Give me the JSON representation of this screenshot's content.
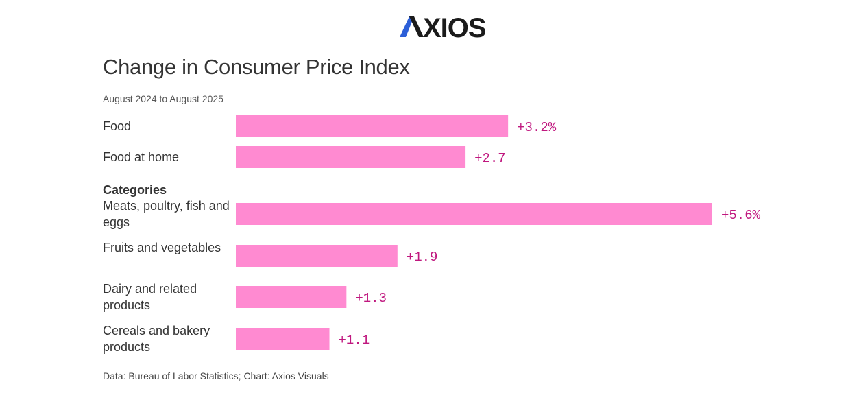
{
  "logo": {
    "name": "AXIOS",
    "icon": "axios-logo"
  },
  "colors": {
    "bar": "#ff8ad1",
    "value_text": "#c0187f",
    "text": "#333333"
  },
  "chart_data": {
    "type": "bar",
    "orientation": "horizontal",
    "title": "Change in Consumer Price Index",
    "subtitle": "August 2024 to August 2025",
    "section_label": "Categories",
    "categories": [
      "Food",
      "Food at home",
      "Meats, poultry, fish and eggs",
      "Fruits and vegetables",
      "Dairy and related products",
      "Cereals and bakery products"
    ],
    "values": [
      3.2,
      2.7,
      5.6,
      1.9,
      1.3,
      1.1
    ],
    "value_labels": [
      "+3.2%",
      "+2.7",
      "+5.6%",
      "+1.9",
      "+1.3",
      "+1.1"
    ],
    "xlim": [
      0,
      5.6
    ],
    "grid": false,
    "legend": "none",
    "source": "Data: Bureau of Labor Statistics; Chart: Axios Visuals"
  }
}
